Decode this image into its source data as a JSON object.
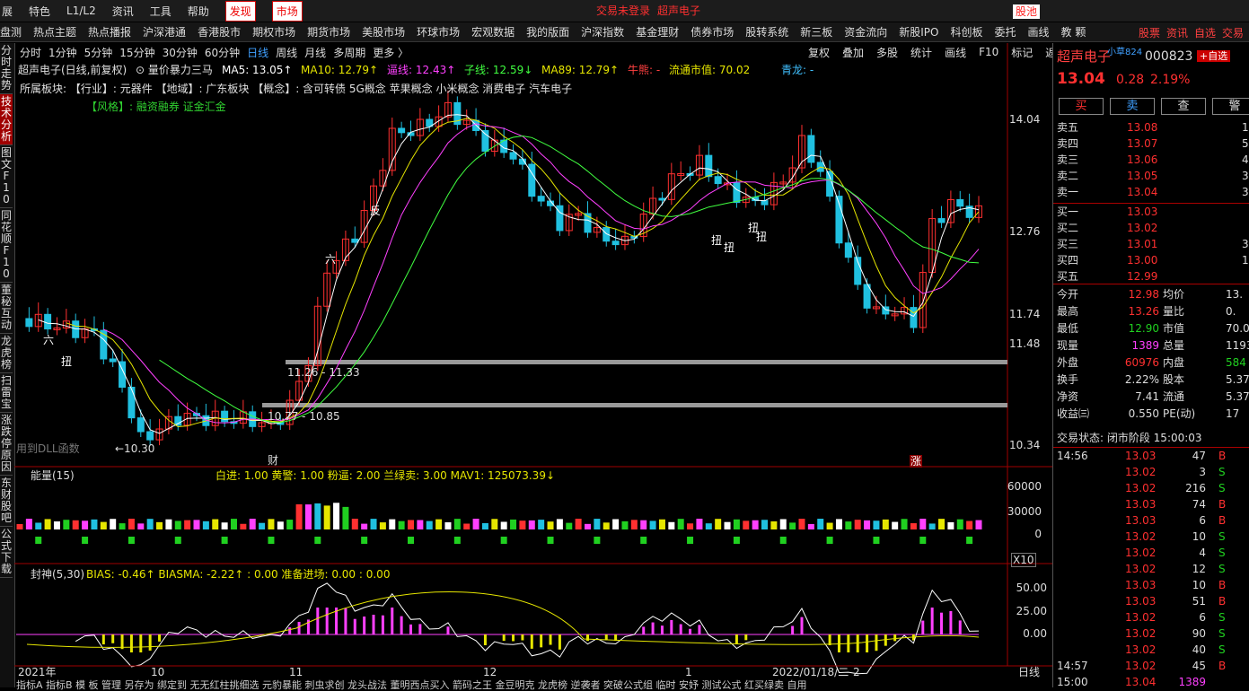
{
  "menu": [
    "展",
    "特色",
    "L1/L2",
    "资讯",
    "工具",
    "帮助",
    "发现",
    "市场"
  ],
  "marquee": [
    "交易未登录",
    "超声电子"
  ],
  "pool": "股池",
  "nav": [
    "盘测",
    "热点主题",
    "热点播报",
    "沪深港通",
    "香港股市",
    "期权市场",
    "期货市场",
    "美股市场",
    "环球市场",
    "宏观数据",
    "我的版面",
    "沪深指数",
    "基金理财",
    "债券市场",
    "股转系统",
    "新三板",
    "资金流向",
    "新股IPO",
    "科创板",
    "委托",
    "画线",
    "教 颗"
  ],
  "nav_right": [
    "股票",
    "资讯",
    "自选",
    "交易"
  ],
  "left_tabs": [
    "分时走势",
    "技术分析",
    "图文F10",
    "同花顺F10",
    "董秘互动",
    "龙虎榜",
    "扫雷宝",
    "涨跌停原因",
    "东财股吧",
    "公式下载"
  ],
  "periods": [
    "分时",
    "1分钟",
    "5分钟",
    "15分钟",
    "30分钟",
    "60分钟",
    "日线",
    "周线",
    "月线",
    "多周期",
    "更多 〉"
  ],
  "tools": [
    "复权",
    "叠加",
    "多股",
    "统计",
    "画线",
    "F10",
    "标记",
    "返回"
  ],
  "indicators": [
    {
      "text": "超声电子(日线,前复权)",
      "color": "#e0e0e0"
    },
    {
      "text": "⊙ 量价暴力三马",
      "color": "#e0e0e0"
    },
    {
      "text": "MA5: 13.05↑",
      "color": "#ffffff"
    },
    {
      "text": "MA10: 12.79↑",
      "color": "#e6e600"
    },
    {
      "text": "逼线: 12.43↑",
      "color": "#ff40ff"
    },
    {
      "text": "子线: 12.59↓",
      "color": "#40ff40"
    },
    {
      "text": "MA89: 12.79↑",
      "color": "#e6e600"
    },
    {
      "text": "牛熊: -",
      "color": "#ff4040"
    },
    {
      "text": "流通市值: 70.02",
      "color": "#e6e600"
    },
    {
      "text": "青龙: -",
      "color": "#40c0ff"
    }
  ],
  "sector_line": "所属板块:  【行业】: 元器件  【地域】: 广东板块  【概念】: 含可转债 5G概念 苹果概念 小米概念 消费电子 汽车电子",
  "style_line": "【风格】: 融资融券 证金汇金",
  "price_axis": [
    "14.04",
    "12.76",
    "11.74",
    "11.48",
    "10.34"
  ],
  "zones": [
    "11.26 - 11.33",
    "10.77 - 10.85"
  ],
  "low_label": "←10.30",
  "dll": "用到DLL函数",
  "marks": [
    "六",
    "反",
    "六",
    "扭",
    "扭",
    "扭",
    "扭",
    "扭",
    "财",
    "涨"
  ],
  "vol_title": "能量(15)",
  "vol_legend": "白进: 1.00  黄警: 1.00  粉逼: 2.00  兰绿卖: 3.00  MAV1: 125073.39↓",
  "vol_axis": [
    "60000",
    "30000",
    "0"
  ],
  "x10": "X10",
  "bias_title": "封神(5,30)",
  "bias_legend": "BIAS: -0.46↑  BIASMA: -2.22↑  : 0.00  准备进场: 0.00   : 0.00",
  "bias_axis": [
    "50.00",
    "25.00",
    "0.00"
  ],
  "x_axis": [
    "2021年",
    "10",
    "11",
    "12",
    "1",
    "2022/01/18/二",
    "2"
  ],
  "period_label": "日线",
  "bottom_bar": "指标A 指标B 模 板 管理 另存为 绑定到 无无红柱挑细选 元豹暴能 刺虫求创 龙头战法 董明西点买入 箭码之王 金豆明克 龙虎榜 逆袭者 突破公式组 临时 安妤 测试公式 红买绿卖 自用",
  "stock": {
    "name": "超声电子",
    "tag": "小草824",
    "code": "000823",
    "add": "+自选",
    "price": "13.04",
    "change": "0.28",
    "pct": "2.19%"
  },
  "buttons": [
    "买",
    "卖",
    "查",
    "警"
  ],
  "sells": [
    [
      "卖五",
      "13.08",
      "1"
    ],
    [
      "卖四",
      "13.07",
      "5"
    ],
    [
      "卖三",
      "13.06",
      "4"
    ],
    [
      "卖二",
      "13.05",
      "3"
    ],
    [
      "卖一",
      "13.04",
      "3"
    ]
  ],
  "buys": [
    [
      "买一",
      "13.03",
      ""
    ],
    [
      "买二",
      "13.02",
      ""
    ],
    [
      "买三",
      "13.01",
      "3"
    ],
    [
      "买四",
      "13.00",
      "1"
    ],
    [
      "买五",
      "12.99",
      ""
    ]
  ],
  "stats": [
    [
      "今开",
      "12.98",
      "均价",
      "13."
    ],
    [
      "最高",
      "13.26",
      "量比",
      "0."
    ],
    [
      "最低",
      "12.90",
      "市值",
      "70.0"
    ],
    [
      "现量",
      "1389",
      "总量",
      "1193"
    ],
    [
      "外盘",
      "60976",
      "内盘",
      "584"
    ],
    [
      "换手",
      "2.22%",
      "股本",
      "5.37"
    ],
    [
      "净资",
      "7.41",
      "流通",
      "5.37"
    ],
    [
      "收益㈢",
      "0.550",
      "PE(动)",
      "17"
    ]
  ],
  "status": "交易状态: 闭市阶段 15:00:03",
  "trades": [
    [
      "14:56",
      "13.03",
      "47",
      "B"
    ],
    [
      "",
      "13.02",
      "3",
      "S"
    ],
    [
      "",
      "13.02",
      "216",
      "S"
    ],
    [
      "",
      "13.03",
      "74",
      "B"
    ],
    [
      "",
      "13.03",
      "6",
      "B"
    ],
    [
      "",
      "13.02",
      "10",
      "S"
    ],
    [
      "",
      "13.02",
      "4",
      "S"
    ],
    [
      "",
      "13.02",
      "12",
      "S"
    ],
    [
      "",
      "13.03",
      "10",
      "B"
    ],
    [
      "",
      "13.03",
      "51",
      "B"
    ],
    [
      "",
      "13.02",
      "6",
      "S"
    ],
    [
      "",
      "13.02",
      "90",
      "S"
    ],
    [
      "",
      "13.02",
      "40",
      "S"
    ],
    [
      "14:57",
      "13.02",
      "45",
      "B"
    ],
    [
      "15:00",
      "13.04",
      "1389",
      ""
    ]
  ]
}
